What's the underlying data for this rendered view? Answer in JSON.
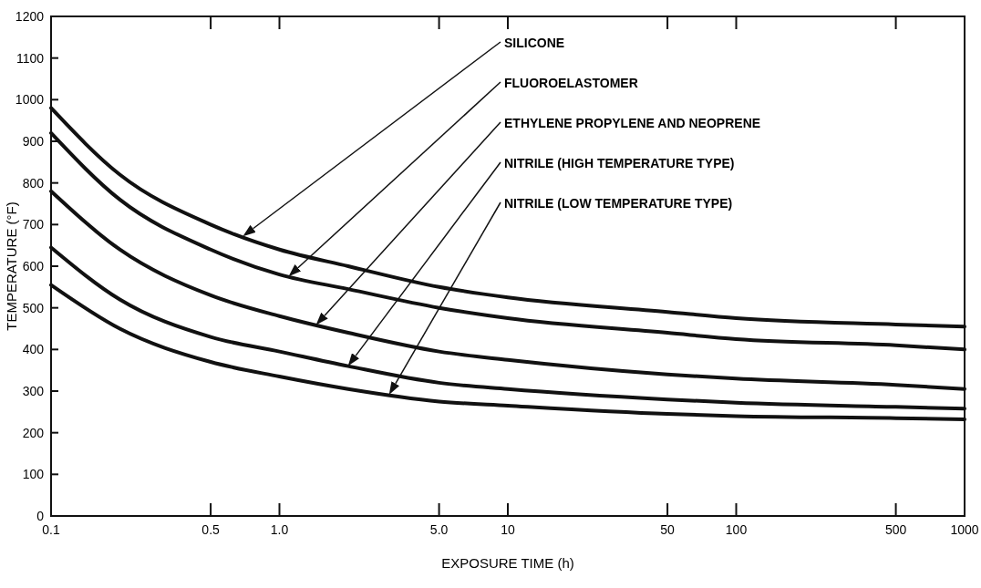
{
  "chart_data": {
    "type": "line",
    "xlabel": "EXPOSURE TIME (h)",
    "ylabel": "TEMPERATURE (°F)",
    "log": "x",
    "x": [
      0.1,
      0.2,
      0.5,
      1,
      2,
      5,
      10,
      50,
      100,
      500,
      1000
    ],
    "xlim": [
      0.1,
      1000
    ],
    "xticks": [
      0.1,
      0.5,
      {
        "value": 1,
        "label": "1.0"
      },
      {
        "value": 5,
        "label": "5.0"
      },
      10,
      50,
      100,
      500,
      1000
    ],
    "ylim": [
      0,
      1200
    ],
    "yticks": [
      0,
      100,
      200,
      300,
      400,
      500,
      600,
      700,
      800,
      900,
      1000,
      1100,
      1200
    ],
    "grid": false,
    "marker": "none",
    "line_style": "solid",
    "series": [
      {
        "name": "SILICONE",
        "color": "#111111",
        "values": [
          980,
          820,
          700,
          640,
          600,
          550,
          525,
          490,
          475,
          460,
          455
        ]
      },
      {
        "name": "FLUOROELASTOMER",
        "color": "#111111",
        "values": [
          920,
          760,
          640,
          580,
          545,
          500,
          475,
          440,
          425,
          410,
          400
        ]
      },
      {
        "name": "ETHYLENE PROPYLENE AND NEOPRENE",
        "color": "#111111",
        "values": [
          780,
          640,
          530,
          480,
          440,
          395,
          375,
          340,
          330,
          315,
          305
        ]
      },
      {
        "name": "NITRILE (HIGH TEMPERATURE TYPE)",
        "color": "#111111",
        "values": [
          645,
          520,
          430,
          395,
          360,
          320,
          305,
          280,
          272,
          262,
          258
        ]
      },
      {
        "name": "NITRILE (LOW TEMPERATURE TYPE)",
        "color": "#111111",
        "values": [
          555,
          450,
          370,
          335,
          305,
          275,
          265,
          245,
          240,
          235,
          232
        ]
      }
    ]
  }
}
